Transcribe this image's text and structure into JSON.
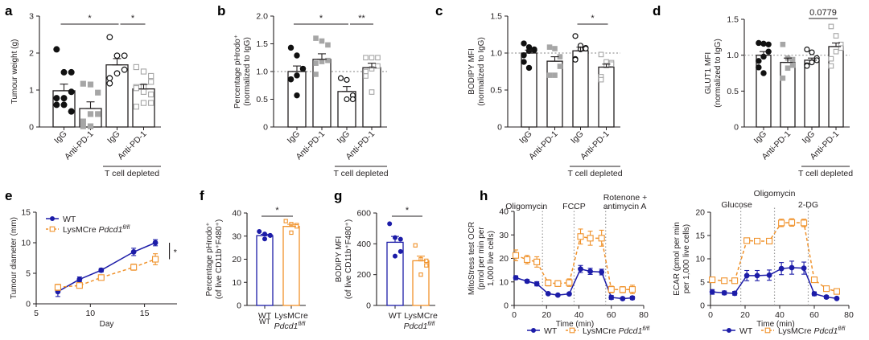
{
  "figure": {
    "stray_text": "WT"
  },
  "colors": {
    "black": "#111111",
    "grey": "#a6a6a6",
    "wt_blue": "#1c1ca8",
    "ko_orange": "#f0922b",
    "axis": "#231f20",
    "refline": "#9a9a9a"
  },
  "chart_data": [
    {
      "panel": "a",
      "type": "bar",
      "title": "",
      "ylabel": [
        "Tumour weight (g)"
      ],
      "ylim": [
        0,
        3
      ],
      "yticks": [
        "0",
        "1",
        "2",
        "3"
      ],
      "yticks_values": [
        0,
        1,
        2,
        3
      ],
      "refline": null,
      "categories": [
        "IgG",
        "Anti-PD-1",
        "IgG",
        "Anti-PD-1"
      ],
      "group_label": "T cell depleted",
      "bars": [
        {
          "mean": 0.98,
          "sem": 0.18,
          "marker": "circle-filled",
          "color": "black",
          "points": [
            2.1,
            1.48,
            1.48,
            0.95,
            0.78,
            0.78,
            0.6,
            0.6,
            0.42,
            0.42
          ]
        },
        {
          "mean": 0.5,
          "sem": 0.18,
          "marker": "square-filled",
          "color": "grey",
          "points": [
            1.17,
            1.15,
            0.93,
            0.35,
            0.35,
            0.15,
            0.02,
            0.02
          ]
        },
        {
          "mean": 1.68,
          "sem": 0.17,
          "marker": "circle-open",
          "color": "black",
          "points": [
            2.43,
            1.93,
            1.93,
            1.55,
            1.45,
            1.32,
            1.18
          ]
        },
        {
          "mean": 1.03,
          "sem": 0.12,
          "marker": "square-open",
          "color": "grey",
          "points": [
            1.62,
            1.5,
            1.38,
            1.22,
            1.1,
            1.08,
            1.05,
            0.95,
            0.88,
            0.65,
            0.65,
            0.55
          ]
        }
      ],
      "significance": [
        {
          "from": 0,
          "to": 2,
          "label": "*"
        },
        {
          "from": 2,
          "to": 3,
          "label": "*"
        }
      ]
    },
    {
      "panel": "b",
      "type": "bar",
      "title": "",
      "ylabel": [
        "Percentage pHrodo⁺",
        "(normalized to IgG)"
      ],
      "ylim": [
        0,
        2.0
      ],
      "yticks": [
        "0",
        "0.5",
        "1.0",
        "1.5",
        "2.0"
      ],
      "yticks_values": [
        0,
        0.5,
        1.0,
        1.5,
        2.0
      ],
      "refline": 1.0,
      "categories": [
        "IgG",
        "Anti-PD-1",
        "IgG",
        "Anti-PD-1"
      ],
      "group_label": "T cell depleted",
      "bars": [
        {
          "mean": 1.0,
          "sem": 0.1,
          "marker": "circle-filled",
          "color": "black",
          "points": [
            1.43,
            1.29,
            1.05,
            1.05,
            0.93,
            0.86,
            0.86,
            0.57
          ]
        },
        {
          "mean": 1.22,
          "sem": 0.1,
          "marker": "square-filled",
          "color": "grey",
          "points": [
            1.6,
            1.55,
            1.48,
            1.2,
            1.18,
            1.15,
            0.95
          ]
        },
        {
          "mean": 0.64,
          "sem": 0.09,
          "marker": "circle-open",
          "color": "black",
          "points": [
            0.88,
            0.85,
            0.57,
            0.5,
            0.5
          ]
        },
        {
          "mean": 1.07,
          "sem": 0.08,
          "marker": "square-open",
          "color": "grey",
          "points": [
            1.25,
            1.25,
            1.25,
            1.1,
            1.05,
            1.0,
            0.92,
            0.63
          ]
        }
      ],
      "significance": [
        {
          "from": 0,
          "to": 2,
          "label": "*"
        },
        {
          "from": 2,
          "to": 3,
          "label": "**"
        }
      ]
    },
    {
      "panel": "c",
      "type": "bar",
      "title": "",
      "ylabel": [
        "BODIPY MFI",
        "(normalized to IgG)"
      ],
      "ylim": [
        0,
        1.5
      ],
      "yticks": [
        "0",
        "0.5",
        "1.0",
        "1.5"
      ],
      "yticks_values": [
        0,
        0.5,
        1.0,
        1.5
      ],
      "refline": 1.0,
      "categories": [
        "IgG",
        "Anti-PD-1",
        "IgG",
        "Anti-PD-1"
      ],
      "group_label": "T cell depleted",
      "bars": [
        {
          "mean": 1.0,
          "sem": 0.04,
          "marker": "circle-filled",
          "color": "black",
          "points": [
            1.13,
            1.08,
            1.05,
            1.04,
            1.03,
            0.97,
            0.88,
            0.8
          ]
        },
        {
          "mean": 0.89,
          "sem": 0.06,
          "marker": "square-filled",
          "color": "grey",
          "points": [
            1.08,
            1.06,
            0.95,
            0.82,
            0.7,
            0.7
          ]
        },
        {
          "mean": 1.03,
          "sem": 0.05,
          "marker": "circle-open",
          "color": "black",
          "points": [
            1.23,
            1.1,
            1.07,
            1.06,
            1.05,
            0.92,
            0.91
          ]
        },
        {
          "mean": 0.81,
          "sem": 0.04,
          "marker": "square-open",
          "color": "grey",
          "points": [
            0.98,
            0.88,
            0.87,
            0.85,
            0.83,
            0.68,
            0.64
          ]
        }
      ],
      "significance": [
        {
          "from": 2,
          "to": 3,
          "label": "*"
        }
      ]
    },
    {
      "panel": "d",
      "type": "bar",
      "title": "",
      "ylabel": [
        "GLUT1 MFI",
        "(normalized to IgG)"
      ],
      "ylim": [
        0,
        1.5
      ],
      "yticks": [
        "0",
        "0.5",
        "1.0",
        "1.5"
      ],
      "yticks_values": [
        0,
        0.5,
        1.0,
        1.5
      ],
      "refline": 1.0,
      "categories": [
        "IgG",
        "Anti-PD-1",
        "IgG",
        "Anti-PD-1"
      ],
      "group_label": "T cell depleted",
      "bars": [
        {
          "mean": 1.0,
          "sem": 0.05,
          "marker": "circle-filled",
          "color": "black",
          "points": [
            1.17,
            1.16,
            1.15,
            1.05,
            0.98,
            0.92,
            0.83,
            0.75
          ]
        },
        {
          "mean": 0.9,
          "sem": 0.06,
          "marker": "square-filled",
          "color": "grey",
          "points": [
            1.15,
            0.96,
            0.94,
            0.86,
            0.82,
            0.68
          ]
        },
        {
          "mean": 0.93,
          "sem": 0.03,
          "marker": "circle-open",
          "color": "black",
          "points": [
            1.08,
            1.04,
            0.96,
            0.93,
            0.9,
            0.86,
            0.85
          ]
        },
        {
          "mean": 1.12,
          "sem": 0.05,
          "marker": "square-open",
          "color": "grey",
          "points": [
            1.4,
            1.27,
            1.15,
            1.1,
            1.05,
            0.95,
            0.85
          ]
        }
      ],
      "significance": [
        {
          "from": 2,
          "to": 3,
          "label": "0.0779"
        }
      ]
    },
    {
      "panel": "e",
      "type": "line",
      "title": "",
      "xlabel": "Day",
      "ylabel": [
        "Tumour diameter (mm)"
      ],
      "xlim": [
        5,
        18
      ],
      "xticks": [
        "5",
        "10",
        "15"
      ],
      "xticks_values": [
        5,
        10,
        15
      ],
      "ylim": [
        0,
        15
      ],
      "yticks": [
        "0",
        "5",
        "10",
        "15"
      ],
      "yticks_values": [
        0,
        5,
        10,
        15
      ],
      "legend_position": "top-left",
      "series": [
        {
          "name": "WT",
          "name_italic": "",
          "name_sup": "",
          "color": "wt_blue",
          "dashed": false,
          "marker": "circle-filled",
          "x": [
            7,
            9,
            11,
            14,
            16
          ],
          "y": [
            2.0,
            4.0,
            5.5,
            8.5,
            10.0
          ],
          "err": [
            0.8,
            0.4,
            0.3,
            0.6,
            0.5
          ]
        },
        {
          "name": "LysMCre ",
          "name_italic": "Pdcd1",
          "name_sup": "fl/fl",
          "color": "ko_orange",
          "dashed": true,
          "marker": "square-open",
          "x": [
            7,
            9,
            11,
            14,
            16
          ],
          "y": [
            2.7,
            3.0,
            4.3,
            6.0,
            7.3
          ],
          "err": [
            0.5,
            0.3,
            0.3,
            0.5,
            0.9
          ]
        }
      ],
      "significance": [
        {
          "label": "*",
          "span": [
            7.3,
            10.0
          ]
        }
      ]
    },
    {
      "panel": "f",
      "type": "bar",
      "title": "",
      "ylabel": [
        "Percentage pHrodo⁺",
        "(of live CD11b⁺F480⁺)"
      ],
      "ylim": [
        0,
        40
      ],
      "yticks": [
        "0",
        "10",
        "20",
        "30",
        "40"
      ],
      "yticks_values": [
        0,
        10,
        20,
        30,
        40
      ],
      "refline": null,
      "categories": [
        "WT",
        "LysMCre"
      ],
      "categories_line2": [
        "",
        "Pdcd1"
      ],
      "categories_sup": [
        "",
        "fl/fl"
      ],
      "bars": [
        {
          "mean": 30.2,
          "sem": 0.6,
          "marker": "circle-filled",
          "color": "wt_blue",
          "points": [
            32.0,
            30.9,
            30.3,
            30.3,
            28.8
          ]
        },
        {
          "mean": 34.2,
          "sem": 0.9,
          "marker": "square-open",
          "color": "ko_orange",
          "points": [
            36.5,
            35.2,
            34.8,
            34.2,
            31.5
          ]
        }
      ],
      "significance": [
        {
          "from": 0,
          "to": 1,
          "label": "*"
        }
      ]
    },
    {
      "panel": "g",
      "type": "bar",
      "title": "",
      "ylabel": [
        "BODIPY MFI",
        "(of live CD11b⁺F480⁺)"
      ],
      "ylim": [
        0,
        600
      ],
      "yticks": [
        "0",
        "200",
        "400",
        "600"
      ],
      "yticks_values": [
        0,
        200,
        400,
        600
      ],
      "refline": null,
      "categories": [
        "WT",
        "LysMCre"
      ],
      "categories_line2": [
        "",
        "Pdcd1"
      ],
      "categories_sup": [
        "",
        "fl/fl"
      ],
      "bars": [
        {
          "mean": 410,
          "sem": 38,
          "marker": "circle-filled",
          "color": "wt_blue",
          "points": [
            530,
            440,
            430,
            350,
            320
          ]
        },
        {
          "mean": 290,
          "sem": 30,
          "marker": "square-open",
          "color": "ko_orange",
          "points": [
            390,
            300,
            290,
            260,
            200
          ]
        }
      ],
      "significance": [
        {
          "from": 0,
          "to": 1,
          "label": "*"
        }
      ]
    },
    {
      "panel": "h",
      "type": "line",
      "title": "",
      "xlabel": "Time (min)",
      "ylabel": [
        "MitoStress test OCR",
        "(pmol per min per",
        "1,000 live cells)"
      ],
      "xlim": [
        0,
        80
      ],
      "xticks": [
        "0",
        "20",
        "40",
        "60",
        "80"
      ],
      "xticks_values": [
        0,
        20,
        40,
        60,
        80
      ],
      "ylim": [
        0,
        40
      ],
      "yticks": [
        "0",
        "10",
        "20",
        "30",
        "40"
      ],
      "yticks_values": [
        0,
        10,
        20,
        30,
        40
      ],
      "injections": [
        {
          "x": 17.5,
          "label": [
            "Oligomycin"
          ]
        },
        {
          "x": 37,
          "label": [
            "FCCP"
          ]
        },
        {
          "x": 56.5,
          "label": [
            "Rotenone +",
            "antimycin A"
          ]
        }
      ],
      "legend_position": "bottom",
      "series": [
        {
          "name": "WT",
          "name_italic": "",
          "name_sup": "",
          "color": "wt_blue",
          "dashed": false,
          "marker": "circle-filled",
          "x": [
            1,
            8,
            14,
            21,
            27,
            34,
            41,
            47,
            54,
            60,
            67,
            73
          ],
          "y": [
            11.8,
            10.3,
            9.2,
            5.0,
            4.4,
            4.9,
            15.5,
            14.5,
            14.2,
            3.4,
            2.9,
            3.2
          ],
          "err": [
            0.8,
            0.7,
            0.9,
            0.4,
            0.3,
            0.4,
            1.5,
            1.3,
            1.2,
            0.8,
            0.5,
            0.7
          ]
        },
        {
          "name": "LysMCre ",
          "name_italic": "Pdcd1",
          "name_sup": "fl/fl",
          "color": "ko_orange",
          "dashed": true,
          "marker": "square-open",
          "x": [
            1,
            8,
            14,
            21,
            27,
            34,
            41,
            47,
            54,
            60,
            67,
            73
          ],
          "y": [
            21.3,
            19.5,
            18.5,
            9.6,
            9.3,
            9.7,
            29.3,
            28.6,
            28.6,
            6.8,
            6.7,
            6.8
          ],
          "err": [
            2.3,
            1.8,
            2.2,
            1.3,
            1.2,
            1.6,
            3.2,
            3.0,
            3.4,
            1.4,
            1.3,
            1.8
          ]
        }
      ]
    },
    {
      "panel": "h2",
      "type": "line",
      "title": "",
      "xlabel": "Time (min)",
      "ylabel": [
        "ECAR (pmol per min",
        "per 1,000 live cells)"
      ],
      "xlim": [
        0,
        80
      ],
      "xticks": [
        "0",
        "20",
        "40",
        "60",
        "80"
      ],
      "xticks_values": [
        0,
        20,
        40,
        60,
        80
      ],
      "ylim": [
        0,
        20
      ],
      "yticks": [
        "0",
        "5",
        "10",
        "15",
        "20"
      ],
      "yticks_values": [
        0,
        5,
        10,
        15,
        20
      ],
      "injections": [
        {
          "x": 17.5,
          "label": [
            "Glucose"
          ]
        },
        {
          "x": 37,
          "label": [
            "Oligomycin"
          ]
        },
        {
          "x": 56.5,
          "label": [
            "2-DG"
          ]
        }
      ],
      "legend_position": "bottom",
      "series": [
        {
          "name": "WT",
          "name_italic": "",
          "name_sup": "",
          "color": "wt_blue",
          "dashed": false,
          "marker": "circle-filled",
          "x": [
            1,
            8,
            14,
            21,
            27,
            34,
            41,
            47,
            54,
            60,
            67,
            73
          ],
          "y": [
            2.9,
            2.7,
            2.6,
            6.4,
            6.4,
            6.5,
            7.9,
            8.1,
            8.0,
            2.5,
            1.8,
            1.5
          ],
          "err": [
            0.5,
            0.4,
            0.4,
            1.1,
            1.1,
            1.1,
            1.3,
            1.4,
            1.3,
            0.4,
            0.3,
            0.2
          ]
        },
        {
          "name": "LysMCre ",
          "name_italic": "Pdcd1",
          "name_sup": "fl/fl",
          "color": "ko_orange",
          "dashed": true,
          "marker": "square-open",
          "x": [
            1,
            8,
            14,
            21,
            27,
            34,
            41,
            47,
            54,
            60,
            67,
            73
          ],
          "y": [
            5.5,
            5.3,
            5.3,
            13.9,
            13.8,
            13.8,
            17.7,
            17.8,
            17.7,
            5.5,
            3.6,
            3.0
          ],
          "err": [
            0.3,
            0.3,
            0.3,
            0.5,
            0.5,
            0.5,
            0.8,
            0.8,
            0.8,
            0.4,
            0.3,
            0.3
          ]
        }
      ]
    }
  ]
}
